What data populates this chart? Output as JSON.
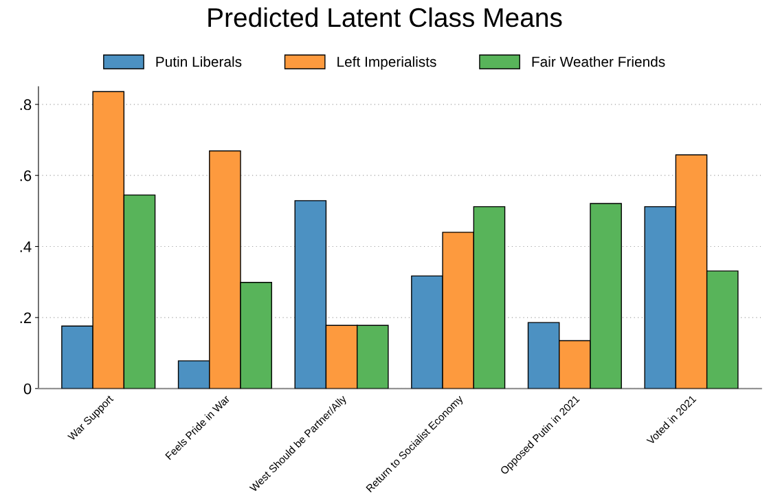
{
  "chart_data": {
    "type": "bar",
    "title": "Predicted Latent Class Means",
    "categories": [
      "War Support",
      "Feels Pride in War",
      "West Should be Partner/Ally",
      "Return to Socialist Economy",
      "Opposed Putin in 2021",
      "Voted in 2021"
    ],
    "series": [
      {
        "name": "Putin Liberals",
        "color": "#4c91c2",
        "values": [
          0.176,
          0.078,
          0.529,
          0.317,
          0.186,
          0.512
        ]
      },
      {
        "name": "Left Imperialists",
        "color": "#fd9a3e",
        "values": [
          0.836,
          0.669,
          0.178,
          0.44,
          0.135,
          0.658
        ]
      },
      {
        "name": "Fair Weather Friends",
        "color": "#58b45a",
        "values": [
          0.545,
          0.299,
          0.178,
          0.512,
          0.521,
          0.331
        ]
      }
    ],
    "ylim": [
      0,
      0.85
    ],
    "yticks": [
      {
        "value": 0,
        "label": "0"
      },
      {
        "value": 0.2,
        "label": ".2"
      },
      {
        "value": 0.4,
        "label": ".4"
      },
      {
        "value": 0.6,
        "label": ".6"
      },
      {
        "value": 0.8,
        "label": ".8"
      }
    ],
    "grid": "y",
    "legend": "top"
  }
}
